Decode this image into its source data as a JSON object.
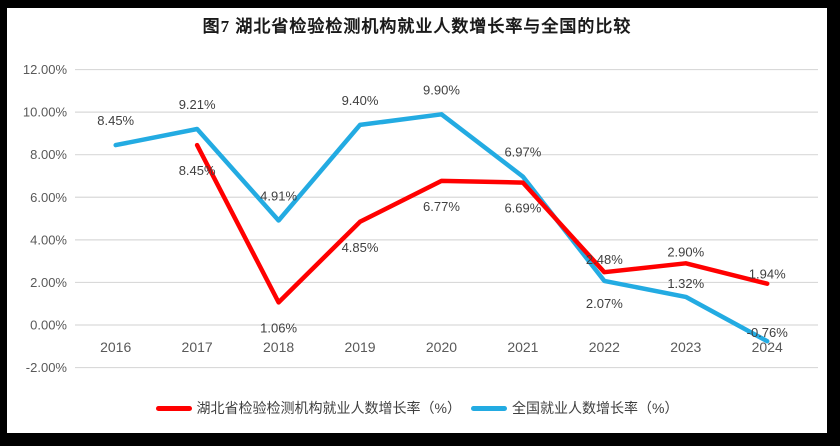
{
  "chart_data": {
    "type": "line",
    "title": "图7 湖北省检验检测机构就业人数增长率与全国的比较",
    "categories": [
      "2016",
      "2017",
      "2018",
      "2019",
      "2020",
      "2021",
      "2022",
      "2023",
      "2024"
    ],
    "series": [
      {
        "name": "湖北省检验检测机构就业人数增长率（%）",
        "color": "#FF0000",
        "values": [
          null,
          8.45,
          1.06,
          4.85,
          6.77,
          6.69,
          2.48,
          2.9,
          1.94
        ],
        "labels": [
          "",
          "8.45%",
          "1.06%",
          "4.85%",
          "6.77%",
          "6.69%",
          "2.48%",
          "2.90%",
          "1.94%"
        ],
        "label_pos": [
          "",
          "below",
          "below",
          "below",
          "below",
          "below",
          "above",
          "above",
          "above"
        ],
        "label_dy": [
          0,
          30,
          30,
          30,
          30,
          30,
          -8,
          -7,
          -5
        ]
      },
      {
        "name": "全国就业人数增长率（%）",
        "color": "#23ABE2",
        "values": [
          8.45,
          9.21,
          4.91,
          9.4,
          9.9,
          6.97,
          2.07,
          1.32,
          -0.76
        ],
        "labels": [
          "8.45%",
          "9.21%",
          "4.91%",
          "9.40%",
          "9.90%",
          "6.97%",
          "2.07%",
          "1.32%",
          "-0.76%"
        ],
        "label_pos": [
          "above",
          "above",
          "above",
          "above",
          "above",
          "above",
          "below",
          "above",
          "above"
        ],
        "label_dy": [
          -20,
          -20,
          -20,
          -20,
          -20,
          -20,
          27,
          -9,
          -4
        ]
      }
    ],
    "xlabel": "",
    "ylabel": "",
    "y_axis": {
      "min": -2,
      "max": 12,
      "step": 2,
      "tick_labels": [
        "12.00%",
        "10.00%",
        "8.00%",
        "6.00%",
        "4.00%",
        "2.00%",
        "0.00%",
        "-2.00%"
      ]
    },
    "ylim": [
      -2,
      12
    ],
    "grid": true,
    "legend_position": "bottom",
    "colors": {
      "gridline": "#D9D9D9",
      "axis_label": "#595959",
      "data_label": "#404040",
      "panel_background": "#FFFFFF",
      "frame_background": "#000000"
    }
  }
}
